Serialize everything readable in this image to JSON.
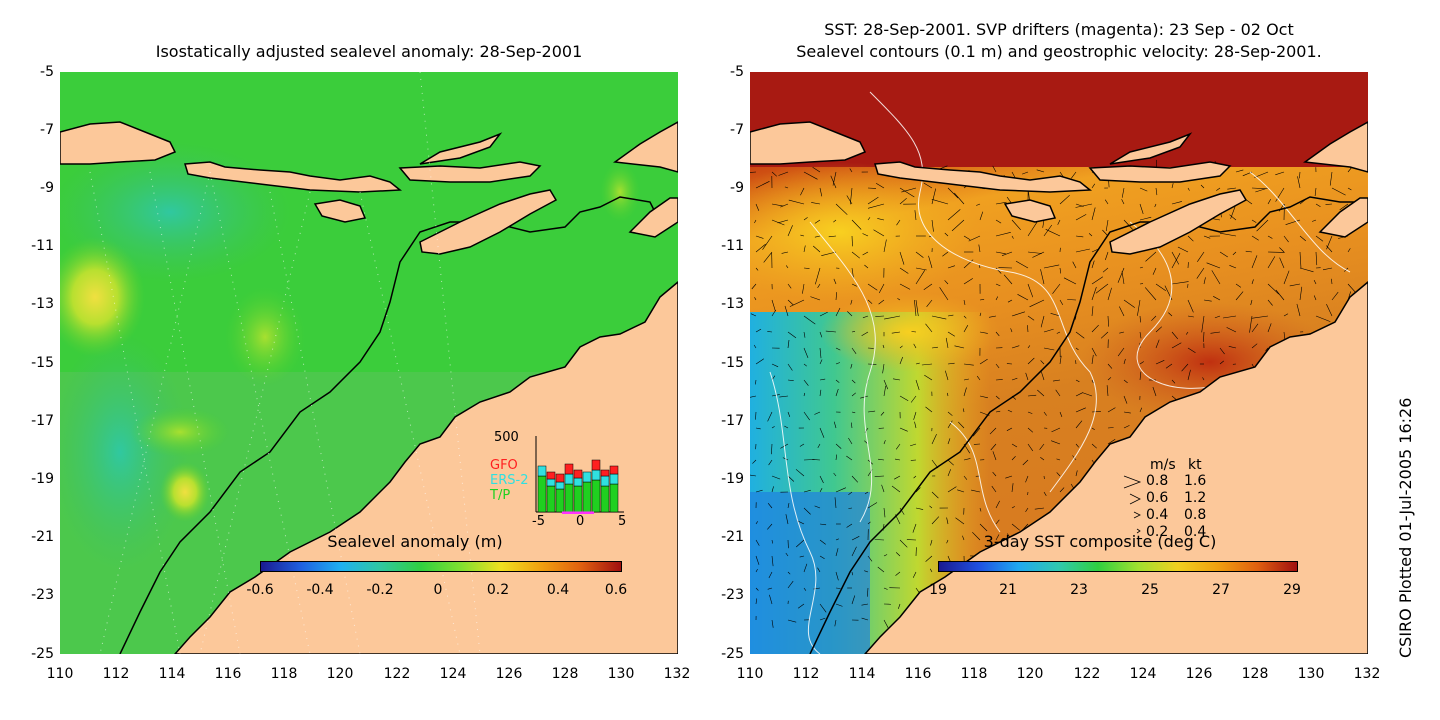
{
  "left_panel": {
    "title": "Isostatically adjusted sealevel anomaly: 28-Sep-2001",
    "colorbar_label": "Sealevel anomaly (m)",
    "colorbar_ticks": [
      "-0.6",
      "-0.4",
      "-0.2",
      "0",
      "0.2",
      "0.4",
      "0.6"
    ],
    "inset": {
      "ymax_label": "500",
      "series": [
        "GFO",
        "ERS-2",
        "T/P"
      ],
      "x_ticks": [
        "-5",
        "0",
        "5"
      ],
      "colors": {
        "GFO": "#ff2020",
        "ERS-2": "#30e0e0",
        "T/P": "#20d020"
      }
    }
  },
  "right_panel": {
    "title_line1": "SST: 28-Sep-2001. SVP drifters (magenta): 23 Sep - 02 Oct",
    "title_line2": "Sealevel contours (0.1 m) and geostrophic velocity: 28-Sep-2001.",
    "colorbar_label": "3-day SST composite (deg C)",
    "colorbar_ticks": [
      "19",
      "21",
      "23",
      "25",
      "27",
      "29"
    ],
    "velocity_legend": {
      "header_ms": "m/s",
      "header_kt": "kt",
      "rows": [
        {
          "ms": "0.8",
          "kt": "1.6"
        },
        {
          "ms": "0.6",
          "kt": "1.2"
        },
        {
          "ms": "0.4",
          "kt": "0.8"
        },
        {
          "ms": "0.2",
          "kt": "0.4"
        }
      ]
    }
  },
  "lat_ticks": [
    "-5",
    "-7",
    "-9",
    "-11",
    "-13",
    "-15",
    "-17",
    "-19",
    "-21",
    "-23",
    "-25"
  ],
  "lon_ticks": [
    "110",
    "112",
    "114",
    "116",
    "118",
    "120",
    "122",
    "124",
    "126",
    "128",
    "130",
    "132"
  ],
  "credit": "CSIRO Plotted 01-Jul-2005 16:26",
  "colors": {
    "land": "#fcc89a",
    "ocean_left": "#28d228",
    "ocean_right": "#e07a20"
  }
}
